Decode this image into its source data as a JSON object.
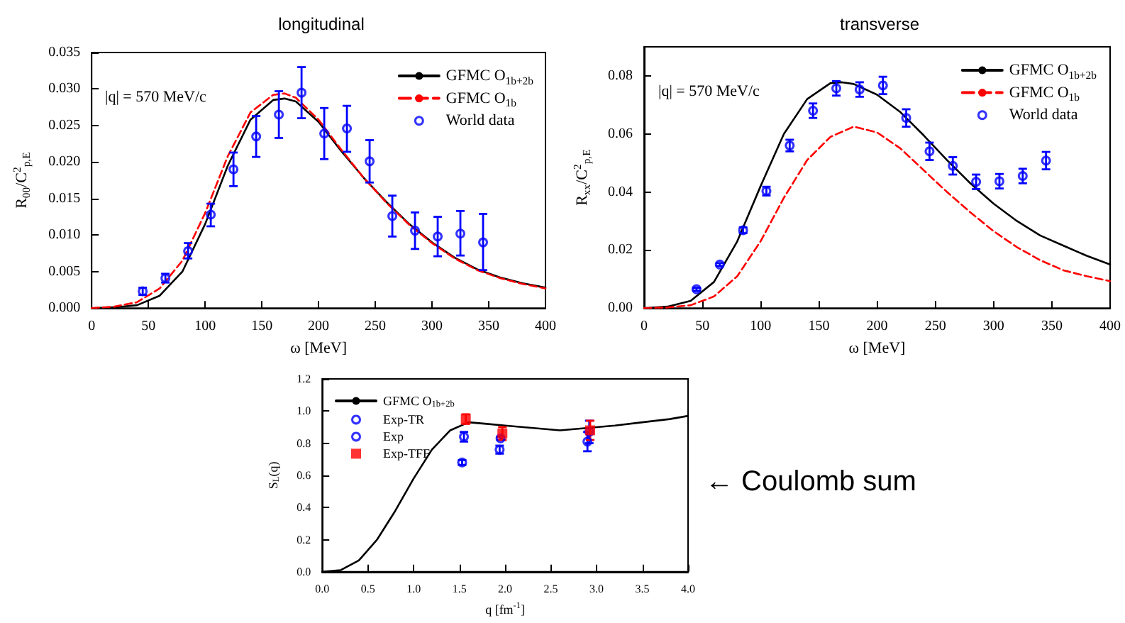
{
  "chart_data": [
    {
      "type": "line",
      "title": "longitudinal",
      "xlabel": "ω [MeV]",
      "ylabel": "R$_{00}$/C$^{2}$$_{p,E}$",
      "legend": "top right",
      "annotations": [
        "|q| = 570 MeV/c"
      ],
      "xlim": [
        0,
        400
      ],
      "xticks": [
        0,
        50,
        100,
        150,
        200,
        250,
        300,
        350,
        400
      ],
      "ylim": [
        0,
        0.035
      ],
      "yticks": [
        {
          "value": 0,
          "label": "0.000"
        },
        {
          "value": 0.005,
          "label": "0.005"
        },
        {
          "value": 0.01,
          "label": "0.010"
        },
        {
          "value": 0.015,
          "label": "0.015"
        },
        {
          "value": 0.02,
          "label": "0.020"
        },
        {
          "value": 0.025,
          "label": "0.025"
        },
        {
          "value": 0.03,
          "label": "0.030"
        },
        {
          "value": 0.035,
          "label": "0.035"
        }
      ],
      "series": [
        {
          "name": "GFMC O$_{1b+2b}$",
          "color": "#000000",
          "marker": "none",
          "line_style": "solid",
          "x": [
            0,
            20,
            40,
            60,
            80,
            100,
            120,
            140,
            160,
            170,
            180,
            200,
            220,
            240,
            260,
            280,
            300,
            320,
            340,
            360,
            380,
            400
          ],
          "values": [
            0,
            0.0001,
            0.0004,
            0.0017,
            0.005,
            0.0115,
            0.0195,
            0.0258,
            0.0285,
            0.0287,
            0.0283,
            0.0255,
            0.0215,
            0.0178,
            0.0145,
            0.0115,
            0.009,
            0.0069,
            0.0053,
            0.0042,
            0.0034,
            0.0028
          ]
        },
        {
          "name": "GFMC O$_{1b}$",
          "color": "#ff0000",
          "marker": "none",
          "line_style": "dashed",
          "x": [
            0,
            20,
            40,
            60,
            80,
            100,
            120,
            140,
            160,
            170,
            180,
            200,
            220,
            240,
            260,
            280,
            300,
            320,
            340,
            360,
            380,
            400
          ],
          "values": [
            0,
            0.0002,
            0.0008,
            0.0027,
            0.0065,
            0.013,
            0.0208,
            0.0268,
            0.0292,
            0.0294,
            0.0288,
            0.0258,
            0.0217,
            0.0178,
            0.0144,
            0.0114,
            0.0089,
            0.0068,
            0.0052,
            0.0041,
            0.0033,
            0.0027
          ]
        },
        {
          "name": "World data",
          "type": "scatter",
          "color": "#0000ff",
          "marker": "circle",
          "x": [
            45,
            65,
            85,
            105,
            125,
            145,
            165,
            185,
            205,
            225,
            245,
            265,
            285,
            305,
            325,
            345
          ],
          "values": [
            0.0023,
            0.0041,
            0.0078,
            0.0128,
            0.019,
            0.0235,
            0.0265,
            0.0295,
            0.0239,
            0.0246,
            0.0201,
            0.0126,
            0.0106,
            0.0098,
            0.0102,
            0.009
          ],
          "errors": [
            [
              0.0018,
              0.0028
            ],
            [
              0.0035,
              0.0047
            ],
            [
              0.0068,
              0.0089
            ],
            [
              0.0112,
              0.0143
            ],
            [
              0.0167,
              0.0213
            ],
            [
              0.0207,
              0.0263
            ],
            [
              0.0233,
              0.0297
            ],
            [
              0.026,
              0.033
            ],
            [
              0.0204,
              0.0274
            ],
            [
              0.0214,
              0.0277
            ],
            [
              0.0172,
              0.023
            ],
            [
              0.0098,
              0.0154
            ],
            [
              0.0081,
              0.0131
            ],
            [
              0.0071,
              0.0125
            ],
            [
              0.0072,
              0.0133
            ],
            [
              0.0052,
              0.0129
            ]
          ]
        }
      ]
    },
    {
      "type": "line",
      "title": "transverse",
      "xlabel": "ω [MeV]",
      "ylabel": "R$_{xx}$/C$^{2}$$_{p,E}$",
      "legend": "top right",
      "annotations": [
        "|q| = 570 MeV/c"
      ],
      "xlim": [
        0,
        400
      ],
      "xticks": [
        0,
        50,
        100,
        150,
        200,
        250,
        300,
        350,
        400
      ],
      "ylim": [
        0,
        0.09
      ],
      "yticks": [
        {
          "value": 0,
          "label": "0.00"
        },
        {
          "value": 0.02,
          "label": "0.02"
        },
        {
          "value": 0.04,
          "label": "0.04"
        },
        {
          "value": 0.06,
          "label": "0.06"
        },
        {
          "value": 0.08,
          "label": "0.08"
        }
      ],
      "series": [
        {
          "name": "GFMC O$_{1b+2b}$",
          "color": "#000000",
          "marker": "none",
          "line_style": "solid",
          "x": [
            0,
            20,
            40,
            60,
            80,
            100,
            120,
            140,
            160,
            170,
            180,
            200,
            220,
            240,
            260,
            280,
            300,
            320,
            340,
            360,
            380,
            400
          ],
          "values": [
            0,
            0.0005,
            0.0025,
            0.009,
            0.023,
            0.042,
            0.06,
            0.072,
            0.0775,
            0.0778,
            0.0772,
            0.0735,
            0.0675,
            0.0595,
            0.051,
            0.043,
            0.036,
            0.03,
            0.025,
            0.0215,
            0.018,
            0.015
          ]
        },
        {
          "name": "GFMC O$_{1b}$",
          "color": "#ff0000",
          "marker": "none",
          "line_style": "dashed",
          "x": [
            0,
            20,
            40,
            60,
            80,
            100,
            120,
            140,
            160,
            180,
            200,
            220,
            240,
            260,
            280,
            300,
            320,
            340,
            360,
            380,
            400
          ],
          "values": [
            0,
            0.0002,
            0.001,
            0.004,
            0.011,
            0.023,
            0.038,
            0.051,
            0.059,
            0.0625,
            0.0605,
            0.055,
            0.0475,
            0.04,
            0.033,
            0.0265,
            0.021,
            0.0165,
            0.013,
            0.011,
            0.0093
          ]
        },
        {
          "name": "World data",
          "type": "scatter",
          "color": "#0000ff",
          "marker": "circle",
          "x": [
            45,
            65,
            85,
            105,
            125,
            145,
            165,
            185,
            205,
            225,
            245,
            265,
            285,
            305,
            325,
            345
          ],
          "values": [
            0.0065,
            0.015,
            0.0268,
            0.0403,
            0.056,
            0.068,
            0.0757,
            0.0753,
            0.0767,
            0.0655,
            0.054,
            0.049,
            0.0435,
            0.0437,
            0.0455,
            0.0508
          ],
          "errors": [
            0.0005,
            0.0005,
            0.001,
            0.0015,
            0.002,
            0.0025,
            0.0025,
            0.0025,
            0.003,
            0.003,
            0.003,
            0.003,
            0.0025,
            0.0025,
            0.0025,
            0.003
          ]
        }
      ]
    },
    {
      "type": "line",
      "xlabel": "q [fm$^{-1}$]",
      "ylabel": "S$_{L}$(q)",
      "legend": "top left",
      "annotations": [
        "← Coulomb sum"
      ],
      "xlim": [
        0,
        4
      ],
      "xticks": [
        {
          "value": 0,
          "label": "0.0"
        },
        {
          "value": 0.5,
          "label": "0.5"
        },
        {
          "value": 1,
          "label": "1.0"
        },
        {
          "value": 1.5,
          "label": "1.5"
        },
        {
          "value": 2,
          "label": "2.0"
        },
        {
          "value": 2.5,
          "label": "2.5"
        },
        {
          "value": 3,
          "label": "3.0"
        },
        {
          "value": 3.5,
          "label": "3.5"
        },
        {
          "value": 4,
          "label": "4.0"
        }
      ],
      "ylim": [
        0,
        1.2
      ],
      "yticks": [
        {
          "value": 0,
          "label": "0.0"
        },
        {
          "value": 0.2,
          "label": "0.2"
        },
        {
          "value": 0.4,
          "label": "0.4"
        },
        {
          "value": 0.6,
          "label": "0.6"
        },
        {
          "value": 0.8,
          "label": "0.8"
        },
        {
          "value": 1,
          "label": "1.0"
        },
        {
          "value": 1.2,
          "label": "1.2"
        }
      ],
      "series": [
        {
          "name": "GFMC O$_{1b+2b}$",
          "color": "#000000",
          "marker": "none",
          "line_style": "solid",
          "x": [
            0,
            0.2,
            0.4,
            0.6,
            0.8,
            1.0,
            1.2,
            1.4,
            1.6,
            1.8,
            2.0,
            2.2,
            2.4,
            2.6,
            2.8,
            3.0,
            3.2,
            3.5,
            3.8,
            4.0
          ],
          "values": [
            0,
            0.01,
            0.07,
            0.2,
            0.38,
            0.58,
            0.76,
            0.88,
            0.93,
            0.92,
            0.91,
            0.9,
            0.89,
            0.88,
            0.89,
            0.9,
            0.91,
            0.93,
            0.95,
            0.97
          ]
        },
        {
          "name": "Exp-TR",
          "type": "scatter",
          "color": "#0000ff",
          "marker": "circle",
          "x": [
            1.53,
            1.94,
            2.9
          ],
          "values": [
            0.68,
            0.76,
            0.81
          ],
          "errors": [
            0.015,
            0.025,
            0.06
          ]
        },
        {
          "name": "Exp",
          "type": "scatter",
          "color": "#0000ff",
          "marker": "circle",
          "x": [
            1.55,
            1.95,
            2.92
          ],
          "values": [
            0.84,
            0.83,
            0.87
          ],
          "errors": [
            0.03,
            0.01,
            0.07
          ]
        },
        {
          "name": "Exp-TFF",
          "type": "scatter",
          "color": "#ff0000",
          "marker": "square",
          "x": [
            1.57,
            1.97,
            2.93
          ],
          "values": [
            0.95,
            0.86,
            0.88
          ],
          "errors": [
            0.03,
            0.04,
            0.06
          ]
        }
      ]
    }
  ]
}
